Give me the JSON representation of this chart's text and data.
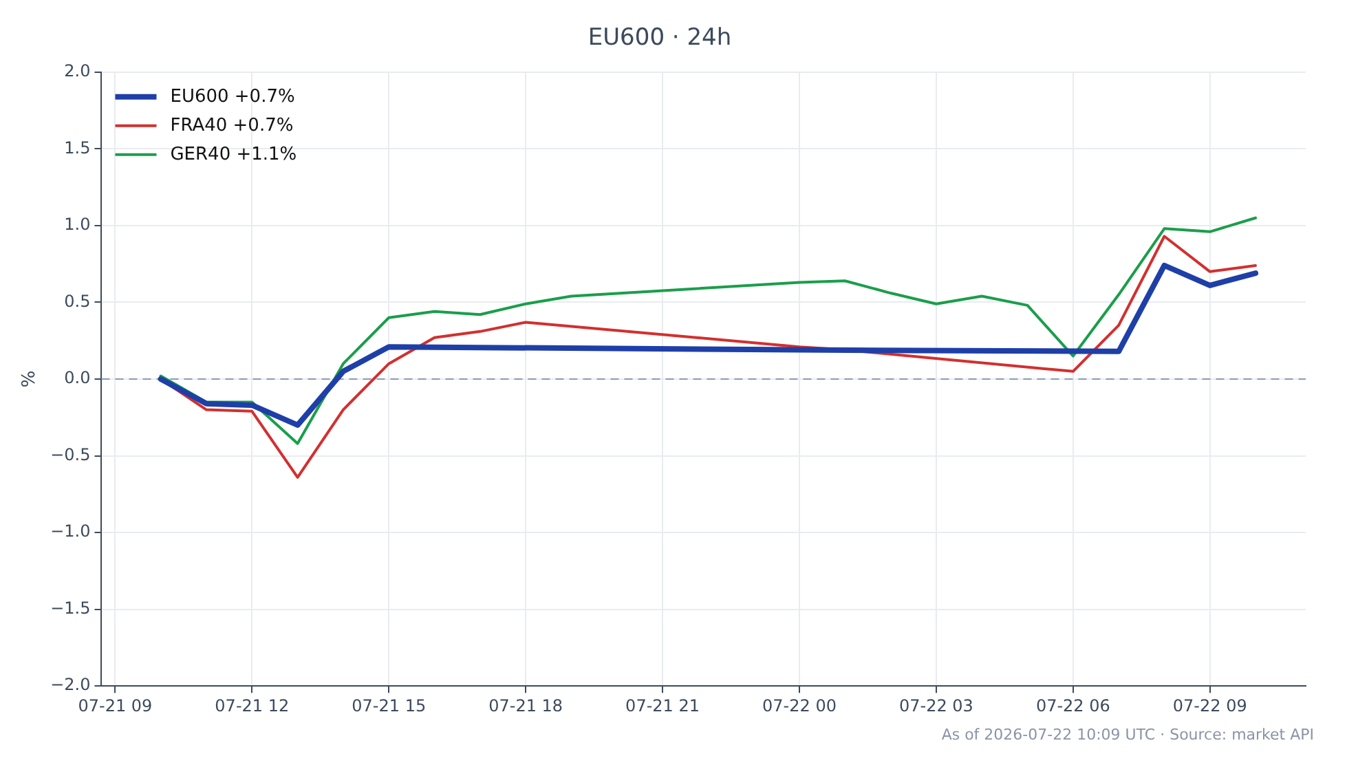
{
  "chart_data": {
    "type": "line",
    "title": "EU600 · 24h",
    "ylabel": "%",
    "xlim": [
      "2026-07-21T08:42",
      "2026-07-22T11:06"
    ],
    "xticks": [
      {
        "value": "2026-07-21T09:00",
        "label": "07-21 09"
      },
      {
        "value": "2026-07-21T12:00",
        "label": "07-21 12"
      },
      {
        "value": "2026-07-21T15:00",
        "label": "07-21 15"
      },
      {
        "value": "2026-07-21T18:00",
        "label": "07-21 18"
      },
      {
        "value": "2026-07-21T21:00",
        "label": "07-21 21"
      },
      {
        "value": "2026-07-22T00:00",
        "label": "07-22 00"
      },
      {
        "value": "2026-07-22T03:00",
        "label": "07-22 03"
      },
      {
        "value": "2026-07-22T06:00",
        "label": "07-22 06"
      },
      {
        "value": "2026-07-22T09:00",
        "label": "07-22 09"
      }
    ],
    "ylim": [
      -2,
      2
    ],
    "yticks": [
      {
        "value": -2,
        "label": "−2.0"
      },
      {
        "value": -1.5,
        "label": "−1.5"
      },
      {
        "value": -1,
        "label": "−1.0"
      },
      {
        "value": -0.5,
        "label": "−0.5"
      },
      {
        "value": 0,
        "label": "0.0"
      },
      {
        "value": 0.5,
        "label": "0.5"
      },
      {
        "value": 1,
        "label": "1.0"
      },
      {
        "value": 1.5,
        "label": "1.5"
      },
      {
        "value": 2,
        "label": "2.0"
      }
    ],
    "series": [
      {
        "name": "EU600 +0.7%",
        "color": "#1f3fa8",
        "x": [
          "2026-07-21T10:00",
          "2026-07-21T11:00",
          "2026-07-21T12:00",
          "2026-07-21T13:00",
          "2026-07-21T14:00",
          "2026-07-21T15:00",
          "2026-07-22T00:00",
          "2026-07-22T07:00",
          "2026-07-22T08:00",
          "2026-07-22T09:00",
          "2026-07-22T10:00"
        ],
        "values": [
          0,
          -0.16,
          -0.17,
          -0.3,
          0.05,
          0.21,
          0.19,
          0.18,
          0.74,
          0.61,
          0.69
        ]
      },
      {
        "name": "FRA40 +0.7%",
        "color": "#d32f2f",
        "x": [
          "2026-07-21T10:00",
          "2026-07-21T11:00",
          "2026-07-21T12:00",
          "2026-07-21T13:00",
          "2026-07-21T14:00",
          "2026-07-21T15:00",
          "2026-07-21T16:00",
          "2026-07-21T17:00",
          "2026-07-21T18:00",
          "2026-07-22T00:00",
          "2026-07-22T01:00",
          "2026-07-22T06:00",
          "2026-07-22T07:00",
          "2026-07-22T08:00",
          "2026-07-22T09:00",
          "2026-07-22T10:00"
        ],
        "values": [
          0,
          -0.2,
          -0.21,
          -0.64,
          -0.2,
          0.1,
          0.27,
          0.31,
          0.37,
          0.21,
          0.19,
          0.05,
          0.35,
          0.93,
          0.7,
          0.74
        ]
      },
      {
        "name": "GER40 +1.1%",
        "color": "#1a9e4b",
        "x": [
          "2026-07-21T10:00",
          "2026-07-21T11:00",
          "2026-07-21T12:00",
          "2026-07-21T13:00",
          "2026-07-21T14:00",
          "2026-07-21T15:00",
          "2026-07-21T16:00",
          "2026-07-21T17:00",
          "2026-07-21T18:00",
          "2026-07-21T19:00",
          "2026-07-22T00:00",
          "2026-07-22T01:00",
          "2026-07-22T02:00",
          "2026-07-22T03:00",
          "2026-07-22T04:00",
          "2026-07-22T05:00",
          "2026-07-22T06:00",
          "2026-07-22T07:00",
          "2026-07-22T08:00",
          "2026-07-22T09:00",
          "2026-07-22T10:00"
        ],
        "values": [
          0.02,
          -0.15,
          -0.15,
          -0.42,
          0.1,
          0.4,
          0.44,
          0.42,
          0.49,
          0.54,
          0.63,
          0.64,
          0.56,
          0.49,
          0.54,
          0.48,
          0.15,
          0.55,
          0.98,
          0.96,
          1.05
        ]
      }
    ],
    "ref_lines": [
      {
        "axis": "y",
        "value": 0,
        "color": "#8a9bb5",
        "line_style": "dashed"
      }
    ],
    "annotations": [
      "As of 2026-07-22 10:09 UTC · Source: market API"
    ],
    "grid": true,
    "legend": "top left",
    "marker": "none",
    "line_style": "solid"
  }
}
